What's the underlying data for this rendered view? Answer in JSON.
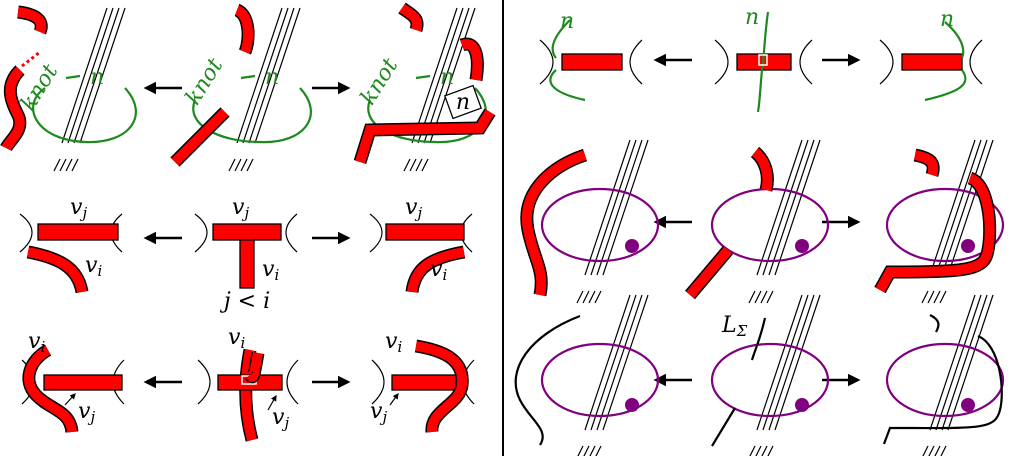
{
  "knot_moves": {
    "knot": [
      "knot",
      "knot",
      "knot"
    ],
    "n": [
      "n",
      "n",
      "n",
      "n"
    ]
  },
  "vertex_moves": {
    "top": [
      {
        "v": "v",
        "sub": "j"
      },
      {
        "v": "v",
        "sub": "j"
      },
      {
        "v": "v",
        "sub": "j"
      }
    ],
    "side": [
      {
        "v": "v",
        "sub": "i"
      },
      {
        "v": "v",
        "sub": "i"
      },
      {
        "v": "v",
        "sub": "i"
      }
    ],
    "condition": "j < i"
  },
  "crossing_moves": {
    "over": [
      {
        "v": "v",
        "sub": "i"
      },
      {
        "v": "v",
        "sub": "i"
      },
      {
        "v": "v",
        "sub": "i"
      }
    ],
    "under": [
      {
        "v": "v",
        "sub": "j"
      },
      {
        "v": "v",
        "sub": "j"
      },
      {
        "v": "v",
        "sub": "j"
      }
    ]
  },
  "green_moves": {
    "n": [
      "n",
      "n",
      "n"
    ]
  },
  "link_label": {
    "base": "L",
    "sub": "Σ"
  }
}
